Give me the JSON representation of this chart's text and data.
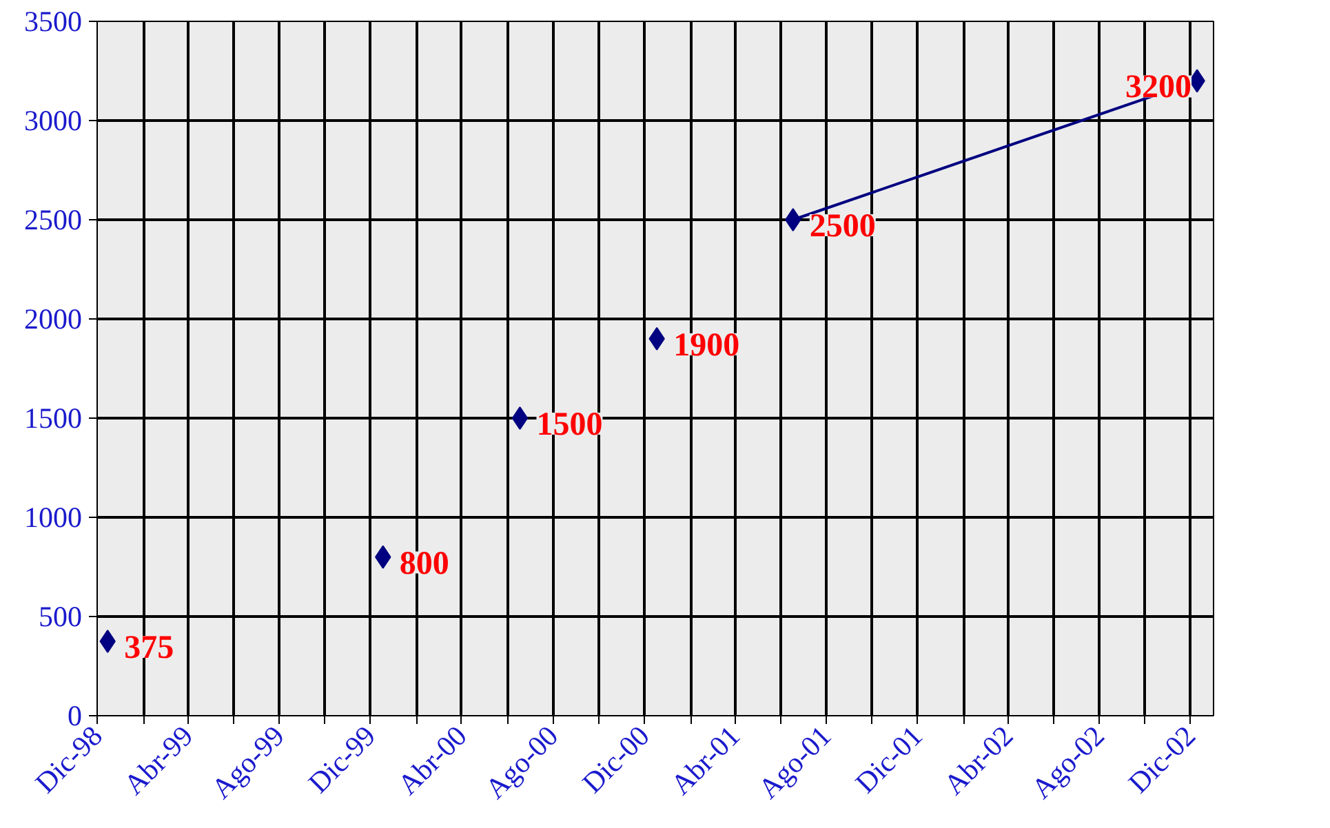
{
  "chart_data": {
    "type": "scatter",
    "series": [
      {
        "color": "#000080",
        "x": [
          "1998-12-15",
          "1999-12-18",
          "2000-06-18",
          "2000-12-18"
        ],
        "values": [
          375,
          800,
          1500,
          1900
        ]
      },
      {
        "type": "line",
        "color": "#000080",
        "x": [
          "2001-06-18",
          "2002-12-10"
        ],
        "values": [
          2500,
          3200
        ],
        "value_labels": [
          "2500",
          "3200"
        ]
      }
    ],
    "value_labels": [
      "375",
      "800",
      "1500",
      "1900"
    ],
    "marker": "diamond",
    "xlim": [
      "1998-12-01",
      "2003-01-01"
    ],
    "xticks": [
      {
        "value": "1998-12",
        "label": "Dic-98"
      },
      {
        "value": "1999-02",
        "label": null
      },
      {
        "value": "1999-04",
        "label": "Abr-99"
      },
      {
        "value": "1999-06",
        "label": null
      },
      {
        "value": "1999-08",
        "label": "Ago-99"
      },
      {
        "value": "1999-10",
        "label": null
      },
      {
        "value": "1999-12",
        "label": "Dic-99"
      },
      {
        "value": "2000-02",
        "label": null
      },
      {
        "value": "2000-04",
        "label": "Abr-00"
      },
      {
        "value": "2000-06",
        "label": null
      },
      {
        "value": "2000-08",
        "label": "Ago-00"
      },
      {
        "value": "2000-10",
        "label": null
      },
      {
        "value": "2000-12",
        "label": "Dic-00"
      },
      {
        "value": "2001-02",
        "label": null
      },
      {
        "value": "2001-04",
        "label": "Abr-01"
      },
      {
        "value": "2001-06",
        "label": null
      },
      {
        "value": "2001-08",
        "label": "Ago-01"
      },
      {
        "value": "2001-10",
        "label": null
      },
      {
        "value": "2001-12",
        "label": "Dic-01"
      },
      {
        "value": "2002-02",
        "label": null
      },
      {
        "value": "2002-04",
        "label": "Abr-02"
      },
      {
        "value": "2002-06",
        "label": null
      },
      {
        "value": "2002-08",
        "label": "Ago-02"
      },
      {
        "value": "2002-10",
        "label": null
      },
      {
        "value": "2002-12",
        "label": "Dic-02"
      }
    ],
    "ylim": [
      0,
      3500
    ],
    "yticks": [
      0,
      500,
      1000,
      1500,
      2000,
      2500,
      3000,
      3500
    ],
    "grid": true
  }
}
